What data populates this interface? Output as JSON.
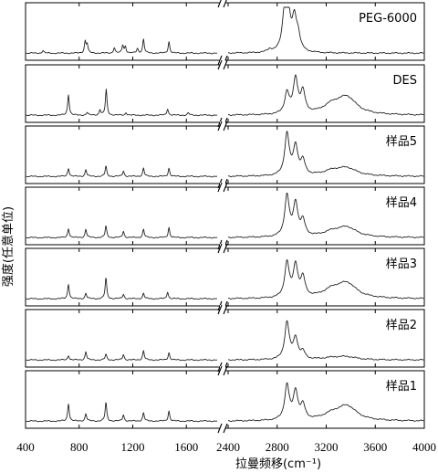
{
  "chart_data": {
    "type": "line",
    "xlabel": "拉曼频移(cm⁻¹)",
    "ylabel": "强度(任意单位)",
    "x_axis": {
      "broken": true,
      "segment1": {
        "xlim": [
          400,
          1830
        ],
        "ticks": [
          400,
          800,
          1200,
          1600
        ]
      },
      "segment2": {
        "xlim": [
          2400,
          4000
        ],
        "ticks": [
          2400,
          2800,
          3200,
          3600,
          4000
        ]
      }
    },
    "ylim": [
      0,
      1
    ],
    "panels": [
      {
        "name": "PEG-6000",
        "peaks": [
          {
            "x": 530,
            "y": 0.06
          },
          {
            "x": 845,
            "y": 0.25
          },
          {
            "x": 860,
            "y": 0.18
          },
          {
            "x": 1062,
            "y": 0.12
          },
          {
            "x": 1125,
            "y": 0.17
          },
          {
            "x": 1145,
            "y": 0.14
          },
          {
            "x": 1235,
            "y": 0.1
          },
          {
            "x": 1280,
            "y": 0.3
          },
          {
            "x": 1470,
            "y": 0.25
          },
          {
            "x": 2740,
            "y": 0.06
          },
          {
            "x": 2860,
            "y": 0.68
          },
          {
            "x": 2885,
            "y": 0.95
          },
          {
            "x": 2940,
            "y": 0.65
          },
          {
            "x": 2970,
            "y": 0.3
          }
        ]
      },
      {
        "name": "DES",
        "peaks": [
          {
            "x": 720,
            "y": 0.45
          },
          {
            "x": 860,
            "y": 0.06
          },
          {
            "x": 955,
            "y": 0.12
          },
          {
            "x": 1002,
            "y": 0.55
          },
          {
            "x": 1150,
            "y": 0.06
          },
          {
            "x": 1460,
            "y": 0.14
          },
          {
            "x": 1615,
            "y": 0.05
          },
          {
            "x": 2880,
            "y": 0.45
          },
          {
            "x": 2950,
            "y": 0.75
          },
          {
            "x": 3010,
            "y": 0.45
          },
          {
            "x": 3250,
            "y": 0.18
          },
          {
            "x": 3370,
            "y": 0.35
          }
        ]
      },
      {
        "name": "样品5",
        "peaks": [
          {
            "x": 720,
            "y": 0.18
          },
          {
            "x": 850,
            "y": 0.15
          },
          {
            "x": 1000,
            "y": 0.22
          },
          {
            "x": 1130,
            "y": 0.12
          },
          {
            "x": 1280,
            "y": 0.18
          },
          {
            "x": 1470,
            "y": 0.18
          },
          {
            "x": 2880,
            "y": 0.9
          },
          {
            "x": 2950,
            "y": 0.62
          },
          {
            "x": 3010,
            "y": 0.3
          },
          {
            "x": 3250,
            "y": 0.1
          },
          {
            "x": 3370,
            "y": 0.16
          }
        ]
      },
      {
        "name": "样品4",
        "peaks": [
          {
            "x": 720,
            "y": 0.2
          },
          {
            "x": 850,
            "y": 0.18
          },
          {
            "x": 1000,
            "y": 0.25
          },
          {
            "x": 1130,
            "y": 0.14
          },
          {
            "x": 1280,
            "y": 0.18
          },
          {
            "x": 1470,
            "y": 0.22
          },
          {
            "x": 2880,
            "y": 0.88
          },
          {
            "x": 2950,
            "y": 0.7
          },
          {
            "x": 3010,
            "y": 0.32
          },
          {
            "x": 3250,
            "y": 0.1
          },
          {
            "x": 3370,
            "y": 0.2
          }
        ]
      },
      {
        "name": "样品3",
        "peaks": [
          {
            "x": 720,
            "y": 0.32
          },
          {
            "x": 850,
            "y": 0.12
          },
          {
            "x": 1000,
            "y": 0.45
          },
          {
            "x": 1130,
            "y": 0.1
          },
          {
            "x": 1280,
            "y": 0.12
          },
          {
            "x": 1460,
            "y": 0.15
          },
          {
            "x": 2880,
            "y": 0.75
          },
          {
            "x": 2950,
            "y": 0.68
          },
          {
            "x": 3010,
            "y": 0.4
          },
          {
            "x": 3250,
            "y": 0.16
          },
          {
            "x": 3370,
            "y": 0.3
          }
        ]
      },
      {
        "name": "样品2",
        "peaks": [
          {
            "x": 720,
            "y": 0.1
          },
          {
            "x": 850,
            "y": 0.18
          },
          {
            "x": 1000,
            "y": 0.12
          },
          {
            "x": 1130,
            "y": 0.12
          },
          {
            "x": 1280,
            "y": 0.2
          },
          {
            "x": 1470,
            "y": 0.16
          },
          {
            "x": 2880,
            "y": 0.8
          },
          {
            "x": 2950,
            "y": 0.45
          },
          {
            "x": 3010,
            "y": 0.15
          },
          {
            "x": 3250,
            "y": 0.04
          },
          {
            "x": 3370,
            "y": 0.06
          }
        ]
      },
      {
        "name": "样品1",
        "peaks": [
          {
            "x": 720,
            "y": 0.38
          },
          {
            "x": 850,
            "y": 0.16
          },
          {
            "x": 1000,
            "y": 0.4
          },
          {
            "x": 1130,
            "y": 0.14
          },
          {
            "x": 1280,
            "y": 0.18
          },
          {
            "x": 1470,
            "y": 0.22
          },
          {
            "x": 2880,
            "y": 0.75
          },
          {
            "x": 2950,
            "y": 0.6
          },
          {
            "x": 3010,
            "y": 0.3
          },
          {
            "x": 3250,
            "y": 0.12
          },
          {
            "x": 3370,
            "y": 0.3
          }
        ]
      }
    ]
  }
}
